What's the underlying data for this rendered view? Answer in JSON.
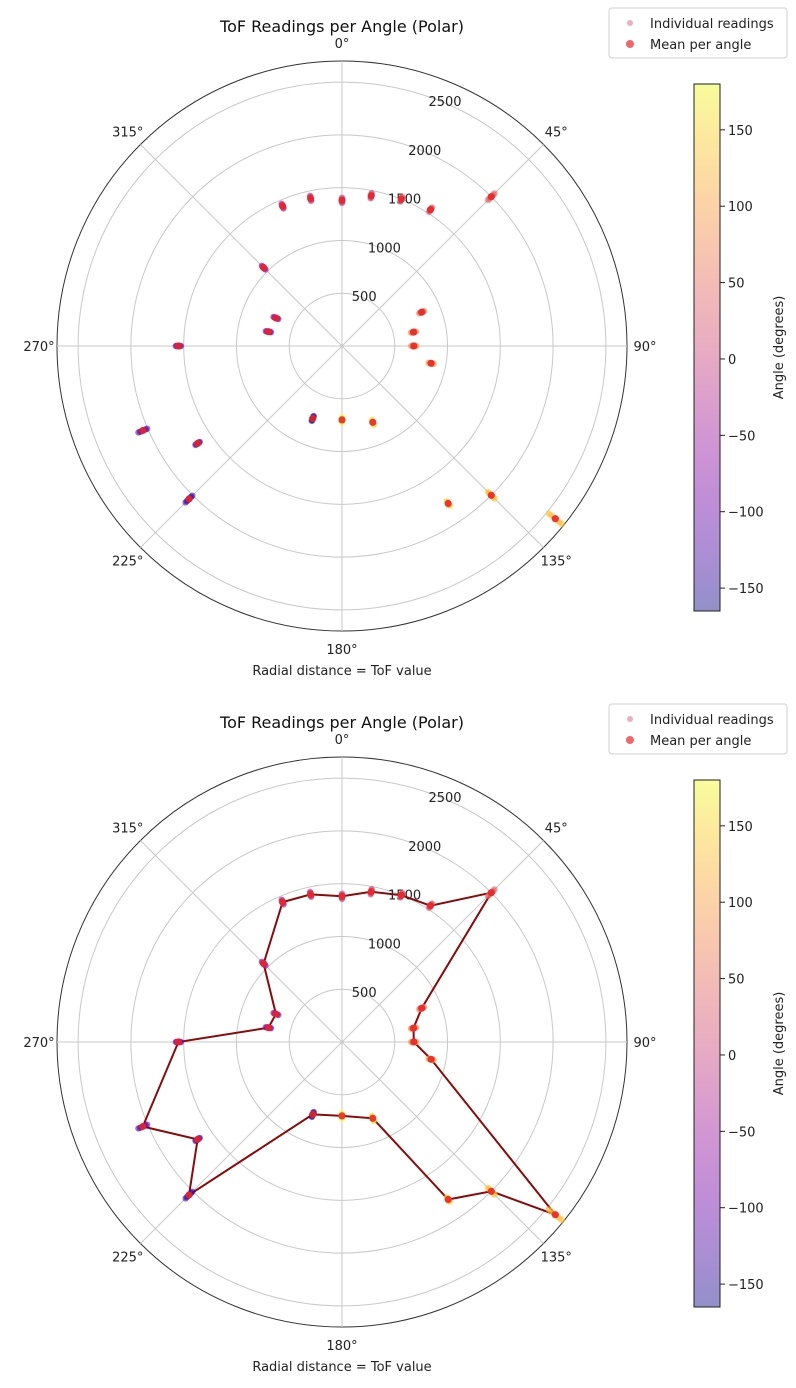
{
  "colorbar": {
    "label": "Angle (degrees)",
    "colormap": "plasma",
    "range": [
      -165,
      180
    ],
    "ticks": [
      -150,
      -100,
      -50,
      0,
      50,
      100,
      150
    ]
  },
  "colors": {
    "mean_marker": "#e8262a",
    "line": "#8b0a0a",
    "grid": "#c8c8c8",
    "axis": "#333333"
  },
  "chart_data": [
    {
      "type": "scatter",
      "projection": "polar",
      "title": "ToF Readings per Angle (Polar)",
      "xlabel": "Radial distance = ToF value",
      "theta_ticks": [
        "0°",
        "45°",
        "90°",
        "135°",
        "180°",
        "225°",
        "270°",
        "315°"
      ],
      "r_ticks": [
        "500",
        "1000",
        "1500",
        "2000",
        "2500"
      ],
      "rlim": [
        0,
        2700
      ],
      "theta_zero": "N",
      "theta_direction": "clockwise",
      "grid": true,
      "legend": {
        "position": "top-right",
        "entries": [
          "Individual readings",
          "Mean per angle"
        ]
      },
      "connect_means": false,
      "series": [
        {
          "name": "Mean per angle",
          "theta_deg": [
            0,
            11,
            22,
            33,
            45,
            67,
            79,
            90,
            101,
            129,
            135,
            146,
            158,
            180,
            202,
            225,
            236,
            247,
            270,
            281,
            293,
            315,
            337,
            348
          ],
          "r": [
            1380,
            1450,
            1500,
            1540,
            2000,
            820,
            690,
            680,
            860,
            2600,
            2000,
            1800,
            780,
            700,
            740,
            2050,
            1650,
            2050,
            1550,
            710,
            680,
            1050,
            1440,
            1430
          ],
          "color_angle": [
            0,
            11,
            22,
            33,
            45,
            67,
            79,
            90,
            101,
            129,
            135,
            146,
            158,
            180,
            202,
            225,
            236,
            247,
            270,
            281,
            293,
            315,
            337,
            348
          ]
        }
      ]
    },
    {
      "type": "scatter",
      "projection": "polar",
      "title": "ToF Readings per Angle (Polar)",
      "xlabel": "Radial distance = ToF value",
      "theta_ticks": [
        "0°",
        "45°",
        "90°",
        "135°",
        "180°",
        "225°",
        "270°",
        "315°"
      ],
      "r_ticks": [
        "500",
        "1000",
        "1500",
        "2000",
        "2500"
      ],
      "rlim": [
        0,
        2700
      ],
      "theta_zero": "N",
      "theta_direction": "clockwise",
      "grid": true,
      "legend": {
        "position": "top-right",
        "entries": [
          "Individual readings",
          "Mean per angle"
        ]
      },
      "connect_means": true,
      "series": [
        {
          "name": "Mean per angle",
          "theta_deg": [
            0,
            11,
            22,
            33,
            45,
            67,
            79,
            90,
            101,
            129,
            135,
            146,
            158,
            180,
            202,
            225,
            236,
            247,
            270,
            281,
            293,
            315,
            337,
            348
          ],
          "r": [
            1380,
            1450,
            1500,
            1540,
            2000,
            820,
            690,
            680,
            860,
            2600,
            2000,
            1800,
            780,
            700,
            740,
            2050,
            1650,
            2050,
            1550,
            710,
            680,
            1050,
            1440,
            1430
          ],
          "color_angle": [
            0,
            11,
            22,
            33,
            45,
            67,
            79,
            90,
            101,
            129,
            135,
            146,
            158,
            180,
            202,
            225,
            236,
            247,
            270,
            281,
            293,
            315,
            337,
            348
          ]
        }
      ]
    }
  ]
}
